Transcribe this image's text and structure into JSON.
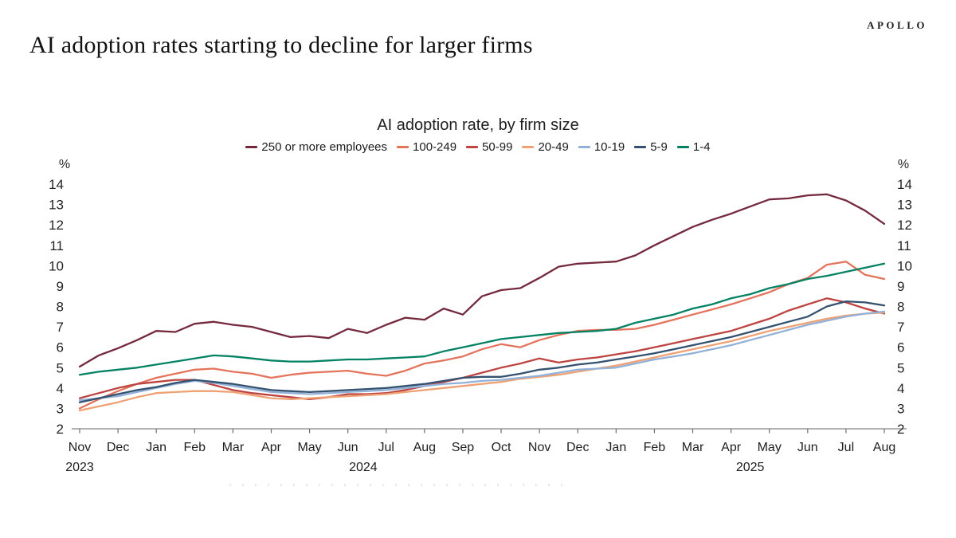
{
  "header": {
    "title": "AI adoption rates starting to decline for larger firms",
    "brand": "APOLLO"
  },
  "chart_data": {
    "type": "line",
    "title": "AI adoption rate, by firm size",
    "grid": false,
    "legend_position": "top-center",
    "sampling": "2 points per month, Nov 2023 - Aug 2025",
    "y_axis": {
      "unit": "%",
      "min": 2,
      "max": 14,
      "ticks": [
        2,
        3,
        4,
        5,
        6,
        7,
        8,
        9,
        10,
        11,
        12,
        13,
        14
      ],
      "sides": [
        "left",
        "right"
      ]
    },
    "x_axis": {
      "tick_labels": [
        "Nov",
        "Dec",
        "Jan",
        "Feb",
        "Mar",
        "Apr",
        "May",
        "Jun",
        "Jul",
        "Aug",
        "Sep",
        "Oct",
        "Nov",
        "Dec",
        "Jan",
        "Feb",
        "Mar",
        "Apr",
        "May",
        "Jun",
        "Jul",
        "Aug"
      ],
      "year_labels": [
        {
          "text": "2023",
          "month_index": 0
        },
        {
          "text": "2024",
          "month_index": 7.4
        },
        {
          "text": "2025",
          "month_index": 17.5
        }
      ]
    },
    "series": [
      {
        "name": "250 or more employees",
        "color": "#74293d",
        "values": [
          5.05,
          5.6,
          5.95,
          6.35,
          6.8,
          6.75,
          7.15,
          7.25,
          7.1,
          7.0,
          6.75,
          6.5,
          6.55,
          6.45,
          6.9,
          6.7,
          7.1,
          7.45,
          7.35,
          7.9,
          7.6,
          8.5,
          8.8,
          8.9,
          9.4,
          9.95,
          10.1,
          10.15,
          10.2,
          10.5,
          11.0,
          11.45,
          11.9,
          12.25,
          12.55,
          12.9,
          13.25,
          13.3,
          13.45,
          13.5,
          13.2,
          12.7,
          12.05
        ]
      },
      {
        "name": "100-249",
        "color": "#e4735c",
        "values": [
          3.0,
          3.45,
          3.85,
          4.2,
          4.5,
          4.7,
          4.9,
          4.95,
          4.8,
          4.7,
          4.5,
          4.65,
          4.75,
          4.8,
          4.85,
          4.7,
          4.6,
          4.85,
          5.2,
          5.35,
          5.55,
          5.9,
          6.15,
          6.0,
          6.35,
          6.6,
          6.8,
          6.85,
          6.85,
          6.9,
          7.1,
          7.35,
          7.6,
          7.85,
          8.1,
          8.4,
          8.7,
          9.1,
          9.4,
          10.05,
          10.2,
          9.55,
          9.35
        ]
      },
      {
        "name": "50-99",
        "color": "#bd4440",
        "values": [
          3.5,
          3.75,
          4.0,
          4.2,
          4.3,
          4.4,
          4.4,
          4.15,
          3.9,
          3.75,
          3.65,
          3.55,
          3.45,
          3.55,
          3.7,
          3.7,
          3.75,
          3.9,
          4.1,
          4.3,
          4.5,
          4.75,
          5.0,
          5.2,
          5.45,
          5.25,
          5.4,
          5.5,
          5.65,
          5.8,
          6.0,
          6.2,
          6.4,
          6.6,
          6.8,
          7.1,
          7.4,
          7.8,
          8.1,
          8.4,
          8.2,
          7.9,
          7.65
        ]
      },
      {
        "name": "20-49",
        "color": "#efa173",
        "values": [
          2.9,
          3.1,
          3.3,
          3.55,
          3.75,
          3.8,
          3.85,
          3.85,
          3.8,
          3.65,
          3.5,
          3.45,
          3.5,
          3.55,
          3.6,
          3.65,
          3.7,
          3.8,
          3.9,
          4.0,
          4.1,
          4.2,
          4.3,
          4.45,
          4.55,
          4.65,
          4.8,
          4.95,
          5.1,
          5.3,
          5.5,
          5.7,
          5.9,
          6.1,
          6.3,
          6.55,
          6.8,
          7.0,
          7.2,
          7.4,
          7.55,
          7.65,
          7.7
        ]
      },
      {
        "name": "10-19",
        "color": "#92b1d8",
        "values": [
          3.4,
          3.5,
          3.6,
          3.8,
          4.0,
          4.2,
          4.35,
          4.25,
          4.1,
          3.95,
          3.8,
          3.75,
          3.7,
          3.75,
          3.8,
          3.85,
          3.9,
          4.0,
          4.1,
          4.2,
          4.25,
          4.35,
          4.4,
          4.5,
          4.6,
          4.75,
          4.9,
          4.95,
          5.0,
          5.2,
          5.4,
          5.55,
          5.7,
          5.9,
          6.1,
          6.35,
          6.6,
          6.85,
          7.1,
          7.3,
          7.5,
          7.65,
          7.75
        ]
      },
      {
        "name": "5-9",
        "color": "#34516f",
        "values": [
          3.3,
          3.5,
          3.7,
          3.9,
          4.05,
          4.25,
          4.4,
          4.3,
          4.2,
          4.05,
          3.9,
          3.85,
          3.8,
          3.85,
          3.9,
          3.95,
          4.0,
          4.1,
          4.2,
          4.35,
          4.5,
          4.55,
          4.55,
          4.7,
          4.9,
          5.0,
          5.15,
          5.25,
          5.4,
          5.55,
          5.7,
          5.9,
          6.1,
          6.3,
          6.5,
          6.75,
          7.0,
          7.25,
          7.5,
          8.0,
          8.25,
          8.2,
          8.05
        ]
      },
      {
        "name": "1-4",
        "color": "#058264",
        "values": [
          4.65,
          4.8,
          4.9,
          5.0,
          5.15,
          5.3,
          5.45,
          5.6,
          5.55,
          5.45,
          5.35,
          5.3,
          5.3,
          5.35,
          5.4,
          5.4,
          5.45,
          5.5,
          5.55,
          5.8,
          6.0,
          6.2,
          6.4,
          6.5,
          6.6,
          6.7,
          6.75,
          6.8,
          6.9,
          7.2,
          7.4,
          7.6,
          7.9,
          8.1,
          8.4,
          8.6,
          8.9,
          9.1,
          9.35,
          9.5,
          9.7,
          9.9,
          10.1
        ]
      }
    ]
  }
}
